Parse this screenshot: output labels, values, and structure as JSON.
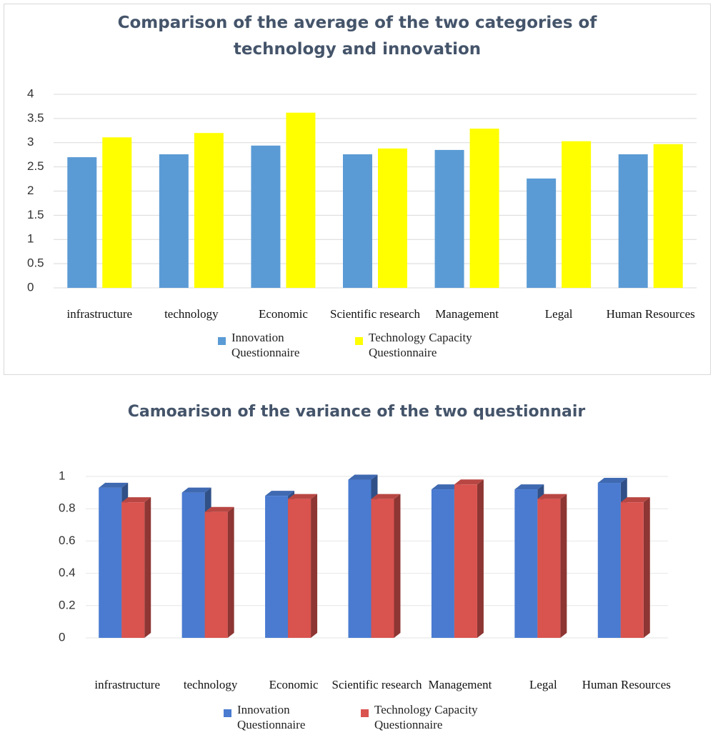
{
  "chart_data": [
    {
      "type": "bar",
      "title": "Comparison of the average of the two categories of technology and innovation",
      "categories": [
        "infrastructure",
        "technology",
        "Economic",
        "Scientific research",
        "Management",
        "Legal",
        "Human Resources"
      ],
      "series": [
        {
          "name": "Innovation Questionnaire",
          "color": "#5b9bd5",
          "values": [
            2.7,
            2.76,
            2.94,
            2.76,
            2.85,
            2.26,
            2.76
          ]
        },
        {
          "name": "Technology Capacity Questionnaire",
          "color": "#ffff00",
          "values": [
            3.11,
            3.2,
            3.62,
            2.88,
            3.29,
            3.03,
            2.97
          ]
        }
      ],
      "ylim": [
        0,
        4
      ],
      "yticks": [
        0,
        0.5,
        1,
        1.5,
        2,
        2.5,
        3,
        3.5,
        4
      ],
      "grid": true
    },
    {
      "type": "bar3d",
      "title": "Camoarison of the variance of the two questionnair",
      "categories": [
        "infrastructure",
        "technology",
        "Economic",
        "Scientific research",
        "Management",
        "Legal",
        "Human Resources"
      ],
      "series": [
        {
          "name": "Innovation Questionnaire",
          "color": "#4a7bd0",
          "values": [
            0.93,
            0.9,
            0.88,
            0.98,
            0.92,
            0.92,
            0.96
          ]
        },
        {
          "name": "Technology Capacity Questionnaire",
          "color": "#d9534f",
          "values": [
            0.84,
            0.78,
            0.86,
            0.86,
            0.95,
            0.86,
            0.84
          ]
        }
      ],
      "ylim": [
        0,
        1
      ],
      "yticks": [
        0,
        0.2,
        0.4,
        0.6,
        0.8,
        1
      ],
      "grid": true
    }
  ]
}
